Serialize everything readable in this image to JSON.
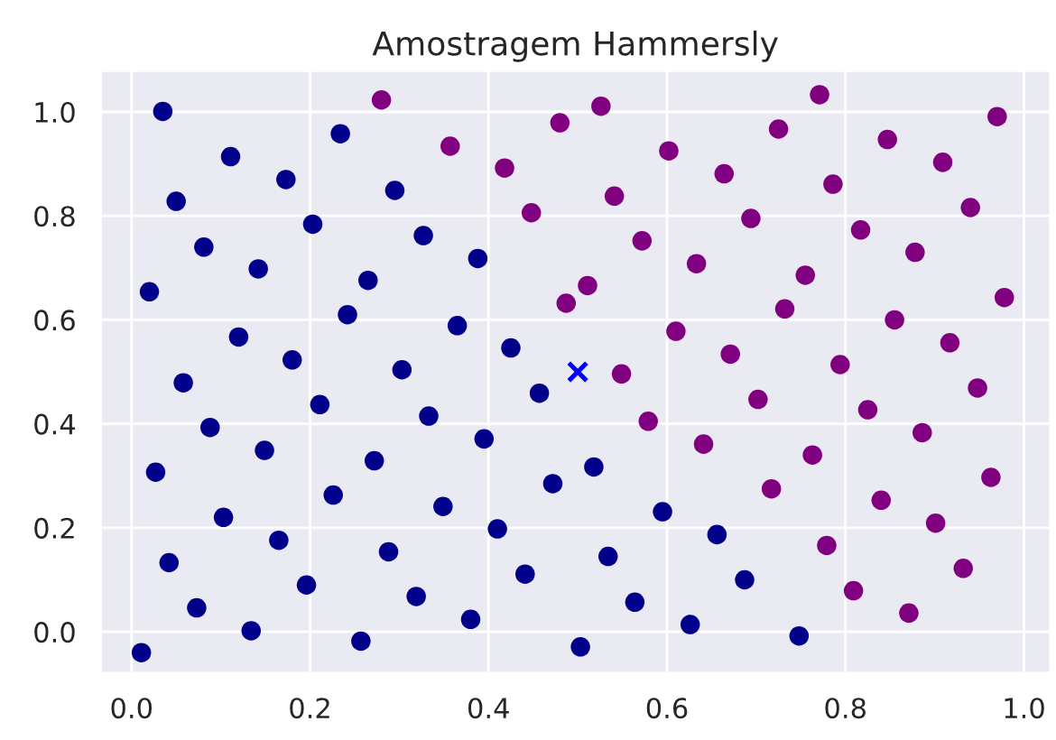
{
  "chart_data": {
    "type": "scatter",
    "title": "Amostragem Hammersly",
    "xlim": [
      -0.035,
      1.03
    ],
    "ylim": [
      -0.08,
      1.08
    ],
    "xticks": [
      {
        "value": 0,
        "label": "0.0"
      },
      {
        "value": 0.2,
        "label": "0.2"
      },
      {
        "value": 0.4,
        "label": "0.4"
      },
      {
        "value": 0.6,
        "label": "0.6"
      },
      {
        "value": 0.8,
        "label": "0.8"
      },
      {
        "value": 1,
        "label": "1.0"
      }
    ],
    "yticks": [
      {
        "value": 0,
        "label": "0.0"
      },
      {
        "value": 0.2,
        "label": "0.2"
      },
      {
        "value": 0.4,
        "label": "0.4"
      },
      {
        "value": 0.6,
        "label": "0.6"
      },
      {
        "value": 0.8,
        "label": "0.8"
      },
      {
        "value": 1,
        "label": "1.0"
      }
    ],
    "grid": true,
    "legend": false,
    "series": [
      {
        "color": "#00008b",
        "marker": "circle",
        "x": [
          0.035,
          0.234,
          0.111,
          0.173,
          0.05,
          0.295,
          0.203,
          0.327,
          0.081,
          0.142,
          0.388,
          0.02,
          0.265,
          0.242,
          0.365,
          0.12,
          0.18,
          0.425,
          0.303,
          0.058,
          0.211,
          0.457,
          0.333,
          0.088,
          0.149,
          0.272,
          0.395,
          0.027,
          0.226,
          0.349,
          0.472,
          0.103,
          0.165,
          0.288,
          0.41,
          0.042,
          0.196,
          0.319,
          0.441,
          0.073,
          0.134,
          0.38,
          0.011,
          0.257,
          0.503,
          0.518,
          0.595,
          0.656,
          0.534,
          0.687,
          0.564,
          0.626,
          0.748
        ],
        "values": [
          1.001,
          0.958,
          0.914,
          0.87,
          0.828,
          0.849,
          0.784,
          0.762,
          0.74,
          0.698,
          0.718,
          0.654,
          0.676,
          0.61,
          0.589,
          0.567,
          0.523,
          0.546,
          0.504,
          0.479,
          0.437,
          0.459,
          0.415,
          0.393,
          0.349,
          0.329,
          0.371,
          0.307,
          0.263,
          0.241,
          0.285,
          0.22,
          0.176,
          0.154,
          0.198,
          0.133,
          0.09,
          0.068,
          0.111,
          0.046,
          0.002,
          0.024,
          -0.04,
          -0.018,
          -0.029,
          0.317,
          0.231,
          0.187,
          0.145,
          0.1,
          0.057,
          0.014,
          -0.008
        ]
      },
      {
        "color": "#800080",
        "marker": "circle",
        "x": [
          0.28,
          0.357,
          0.48,
          0.418,
          0.448,
          0.487,
          0.526,
          0.771,
          0.97,
          0.725,
          0.602,
          0.847,
          0.664,
          0.909,
          0.541,
          0.786,
          0.94,
          0.694,
          0.572,
          0.817,
          0.878,
          0.633,
          0.755,
          0.511,
          0.978,
          0.732,
          0.855,
          0.61,
          0.917,
          0.671,
          0.794,
          0.549,
          0.948,
          0.702,
          0.825,
          0.579,
          0.886,
          0.641,
          0.763,
          0.963,
          0.717,
          0.84,
          0.901,
          0.779,
          0.932,
          0.809,
          0.871
        ],
        "values": [
          1.023,
          0.934,
          0.979,
          0.892,
          0.806,
          0.632,
          1.011,
          1.033,
          0.991,
          0.967,
          0.925,
          0.947,
          0.881,
          0.903,
          0.838,
          0.861,
          0.816,
          0.795,
          0.752,
          0.773,
          0.73,
          0.708,
          0.686,
          0.666,
          0.643,
          0.621,
          0.6,
          0.578,
          0.556,
          0.534,
          0.514,
          0.496,
          0.469,
          0.447,
          0.427,
          0.405,
          0.383,
          0.361,
          0.34,
          0.297,
          0.275,
          0.253,
          0.209,
          0.166,
          0.122,
          0.079,
          0.036
        ]
      },
      {
        "color": "#0000ff",
        "marker": "cross",
        "x": [
          0.5
        ],
        "values": [
          0.5
        ]
      }
    ]
  }
}
